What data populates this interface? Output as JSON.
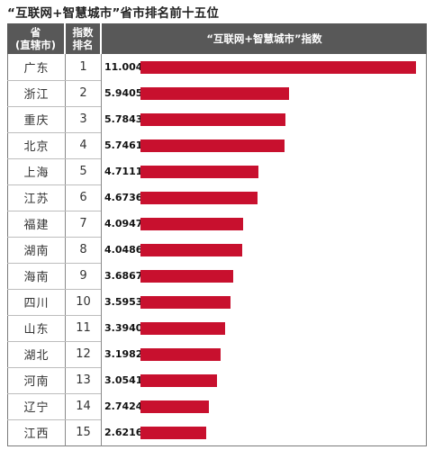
{
  "chart_data": {
    "type": "bar",
    "title": "“互联网+智慧城市”省市排名前十五位",
    "headers": {
      "province": [
        "省",
        "(直辖市)"
      ],
      "rank": [
        "指数",
        "排名"
      ],
      "index": "“互联网+智慧城市”指数"
    },
    "categories": [
      "广东",
      "浙江",
      "重庆",
      "北京",
      "上海",
      "江苏",
      "福建",
      "湖南",
      "海南",
      "四川",
      "山东",
      "湖北",
      "河南",
      "辽宁",
      "江西"
    ],
    "ranks": [
      "1",
      "2",
      "3",
      "4",
      "5",
      "6",
      "7",
      "8",
      "9",
      "10",
      "11",
      "12",
      "13",
      "14",
      "15"
    ],
    "value_labels": [
      "11.0045",
      "5.9405",
      "5.7843",
      "5.7461",
      "4.7111",
      "4.6736",
      "4.0947",
      "4.0486",
      "3.6867",
      "3.5953",
      "3.3940",
      "3.1982",
      "3.0541",
      "2.7424",
      "2.6216"
    ],
    "values": [
      11.0045,
      5.9405,
      5.7843,
      5.7461,
      4.7111,
      4.6736,
      4.0947,
      4.0486,
      3.6867,
      3.5953,
      3.394,
      3.1982,
      3.0541,
      2.7424,
      2.6216
    ],
    "bar_color": "#c8102e",
    "header_color": "#585858",
    "grid": false,
    "legend": "none"
  }
}
